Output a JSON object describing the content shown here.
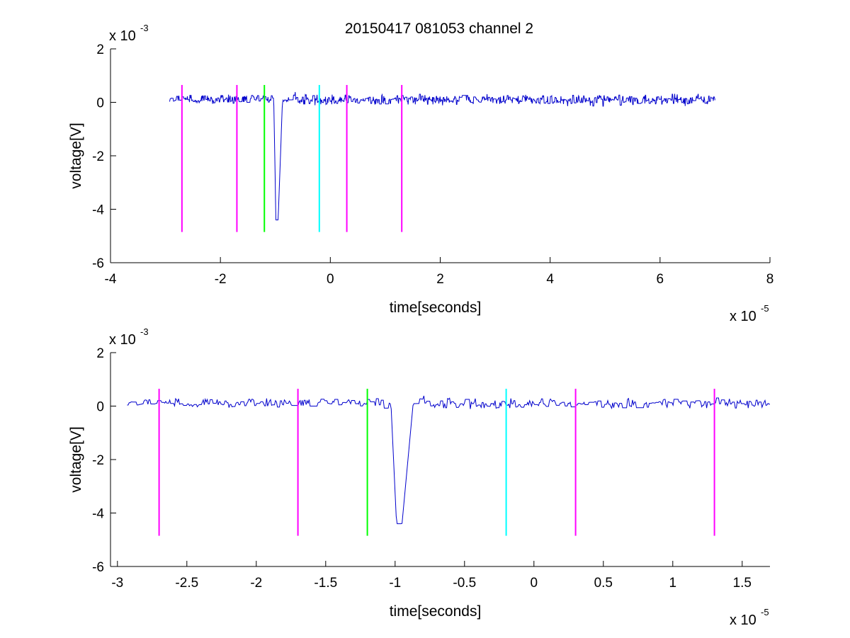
{
  "title": "20150417 081053 channel 2",
  "colors": {
    "signal": "#0000cc",
    "marker_magenta": "#ff00ff",
    "marker_green": "#00ff00",
    "marker_cyan": "#00ffff",
    "axis": "#000000"
  },
  "chart_data": [
    {
      "type": "line",
      "xlabel": "time[seconds]",
      "ylabel": "voltage[V]",
      "x_multiplier": {
        "base": "x 10",
        "exponent": "-5"
      },
      "y_multiplier": {
        "base": "x 10",
        "exponent": "-3"
      },
      "xlim": [
        -4,
        8
      ],
      "ylim": [
        -6,
        2
      ],
      "xticks": [
        -4,
        -2,
        0,
        2,
        4,
        6,
        8
      ],
      "xtick_labels": [
        "-4",
        "-2",
        "0",
        "2",
        "4",
        "6",
        "8"
      ],
      "yticks": [
        -6,
        -4,
        -2,
        0,
        2
      ],
      "ytick_labels": [
        "-6",
        "-4",
        "-2",
        "0",
        "2"
      ],
      "grid": false,
      "signal": {
        "x_start": -2.93,
        "x_end": 7.0,
        "baseline": 0.1,
        "noise_amplitude": 0.15,
        "pulse_center": -0.97,
        "pulse_min": -4.4
      },
      "markers": [
        {
          "x": -2.7,
          "color": "magenta",
          "y_bottom": -4.85,
          "y_top": 0.65
        },
        {
          "x": -1.7,
          "color": "magenta",
          "y_bottom": -4.85,
          "y_top": 0.65
        },
        {
          "x": -1.2,
          "color": "green",
          "y_bottom": -4.85,
          "y_top": 0.65
        },
        {
          "x": -0.2,
          "color": "cyan",
          "y_bottom": -4.85,
          "y_top": 0.65
        },
        {
          "x": 0.3,
          "color": "magenta",
          "y_bottom": -4.85,
          "y_top": 0.65
        },
        {
          "x": 1.3,
          "color": "magenta",
          "y_bottom": -4.85,
          "y_top": 0.65
        }
      ]
    },
    {
      "type": "line",
      "xlabel": "time[seconds]",
      "ylabel": "voltage[V]",
      "x_multiplier": {
        "base": "x 10",
        "exponent": "-5"
      },
      "y_multiplier": {
        "base": "x 10",
        "exponent": "-3"
      },
      "xlim": [
        -3.05,
        1.7
      ],
      "ylim": [
        -6,
        2
      ],
      "xticks": [
        -3,
        -2.5,
        -2,
        -1.5,
        -1,
        -0.5,
        0,
        0.5,
        1,
        1.5
      ],
      "xtick_labels": [
        "-3",
        "-2.5",
        "-2",
        "-1.5",
        "-1",
        "-0.5",
        "0",
        "0.5",
        "1",
        "1.5"
      ],
      "yticks": [
        -6,
        -4,
        -2,
        0,
        2
      ],
      "ytick_labels": [
        "-6",
        "-4",
        "-2",
        "0",
        "2"
      ],
      "grid": false,
      "signal": {
        "x_start": -2.93,
        "x_end": 1.7,
        "baseline": 0.1,
        "noise_amplitude": 0.15,
        "pulse_center": -0.97,
        "pulse_min": -4.4
      },
      "markers": [
        {
          "x": -2.7,
          "color": "magenta",
          "y_bottom": -4.85,
          "y_top": 0.65
        },
        {
          "x": -1.7,
          "color": "magenta",
          "y_bottom": -4.85,
          "y_top": 0.65
        },
        {
          "x": -1.2,
          "color": "green",
          "y_bottom": -4.85,
          "y_top": 0.65
        },
        {
          "x": -0.2,
          "color": "cyan",
          "y_bottom": -4.85,
          "y_top": 0.65
        },
        {
          "x": 0.3,
          "color": "magenta",
          "y_bottom": -4.85,
          "y_top": 0.65
        },
        {
          "x": 1.3,
          "color": "magenta",
          "y_bottom": -4.85,
          "y_top": 0.65
        }
      ]
    }
  ]
}
